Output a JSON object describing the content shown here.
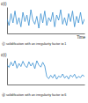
{
  "chart_data": [
    {
      "type": "line",
      "title": "ⓒ solidification with an irregularity factor i= 1",
      "y_label": "c(t)",
      "x_label": "Time",
      "x": [
        0,
        1,
        2,
        3,
        4,
        5,
        6,
        7,
        8,
        9,
        10,
        11,
        12,
        13,
        14,
        15,
        16,
        17,
        18,
        19,
        20,
        21,
        22,
        23,
        24,
        25,
        26,
        27,
        28,
        29,
        30,
        31,
        32,
        33,
        34,
        35,
        36,
        37,
        38,
        39
      ],
      "values": [
        0.55,
        0.3,
        0.75,
        0.4,
        0.85,
        0.35,
        0.6,
        0.25,
        0.8,
        0.45,
        0.7,
        0.3,
        0.9,
        0.5,
        0.35,
        0.65,
        0.2,
        0.75,
        0.4,
        0.85,
        0.3,
        0.6,
        0.45,
        0.8,
        0.25,
        0.7,
        0.5,
        0.9,
        0.35,
        0.6,
        0.3,
        0.75,
        0.45,
        0.85,
        0.25,
        0.65,
        0.4,
        0.8,
        0.35,
        0.55
      ],
      "xlim": [
        0,
        39
      ],
      "ylim": [
        0,
        1
      ],
      "xticks": [],
      "yticks": [],
      "tick_labels": false,
      "color": "#3a8fd0"
    },
    {
      "type": "line",
      "title": "ⓓ solidification with an irregularity factor i= 6",
      "y_label": "c(t)",
      "x": [
        0,
        1,
        2,
        3,
        4,
        5,
        6,
        7,
        8,
        9,
        10,
        11,
        12,
        13,
        14,
        15,
        16,
        17,
        18,
        19,
        20,
        21,
        22,
        23,
        24,
        25,
        26,
        27,
        28,
        29,
        30,
        31,
        32,
        33,
        34,
        35,
        36,
        37,
        38,
        39
      ],
      "values": [
        0.75,
        0.65,
        0.85,
        0.7,
        0.9,
        0.62,
        0.8,
        0.68,
        0.88,
        0.72,
        0.64,
        0.86,
        0.7,
        0.82,
        0.6,
        0.9,
        0.74,
        0.66,
        0.84,
        0.7,
        0.3,
        0.22,
        0.35,
        0.25,
        0.38,
        0.2,
        0.32,
        0.27,
        0.4,
        0.24,
        0.33,
        0.21,
        0.36,
        0.28,
        0.39,
        0.23,
        0.31,
        0.26,
        0.37,
        0.29
      ],
      "xlim": [
        0,
        39
      ],
      "ylim": [
        0,
        1
      ],
      "xticks": [],
      "yticks": [],
      "tick_labels": false,
      "color": "#3a8fd0"
    }
  ]
}
